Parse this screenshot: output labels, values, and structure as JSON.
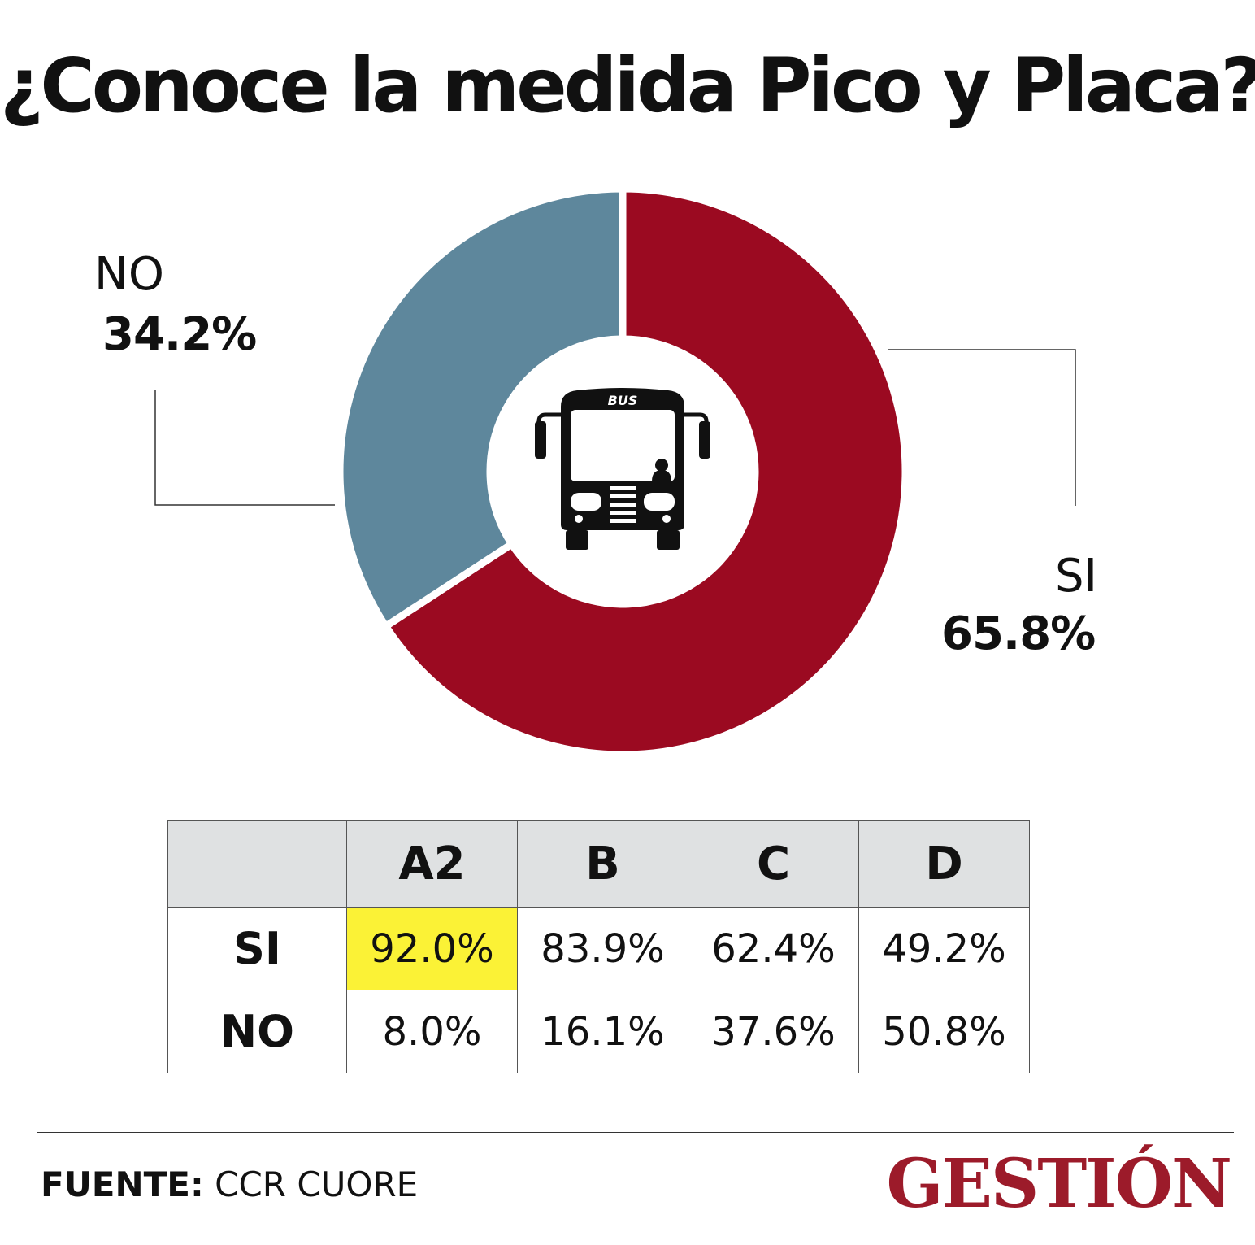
{
  "title": "¿Conoce la medida Pico y Placa?",
  "chart_data": [
    {
      "type": "pie",
      "title": "¿Conoce la medida Pico y Placa?",
      "slices": [
        {
          "label": "SI",
          "value": 65.8,
          "value_label": "65.8%",
          "color": "#9b0a21"
        },
        {
          "label": "NO",
          "value": 34.2,
          "value_label": "34.2%",
          "color": "#5e879c"
        }
      ],
      "center_icon": "bus-icon",
      "center_icon_text": "BUS"
    },
    {
      "type": "table",
      "columns": [
        "A2",
        "B",
        "C",
        "D"
      ],
      "rows": [
        {
          "label": "SI",
          "values": [
            "92.0%",
            "83.9%",
            "62.4%",
            "49.2%"
          ]
        },
        {
          "label": "NO",
          "values": [
            "8.0%",
            "16.1%",
            "37.6%",
            "50.8%"
          ]
        }
      ],
      "highlight": {
        "row": 0,
        "column": 0,
        "color": "#fbf236"
      }
    }
  ],
  "source": {
    "label": "FUENTE:",
    "text": "CCR CUORE"
  },
  "logo": "GESTIÓN"
}
